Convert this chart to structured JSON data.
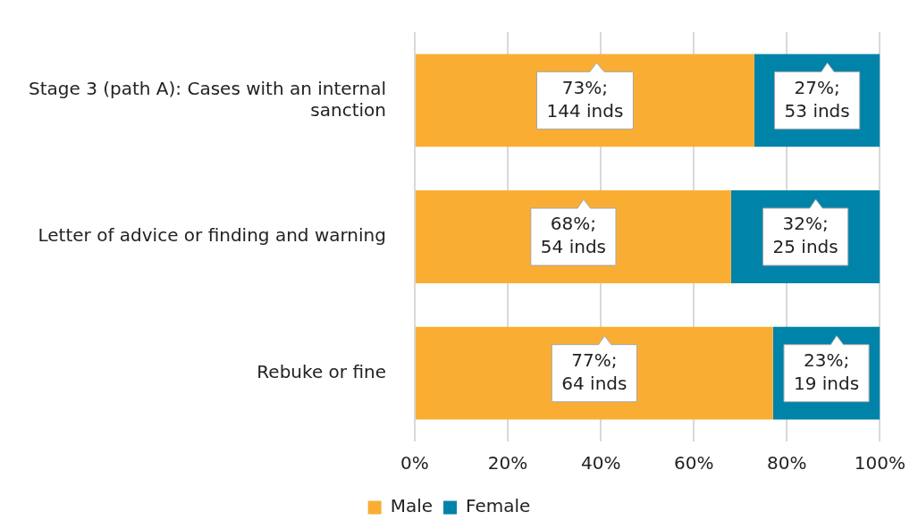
{
  "chart_data": {
    "type": "bar",
    "orientation": "horizontal",
    "stacked": true,
    "categories": [
      "Stage 3 (path A): Cases with an internal sanction",
      "Letter of advice or finding and warning",
      "Rebuke or fine"
    ],
    "series": [
      {
        "name": "Male",
        "color": "#f9ae33",
        "values": [
          73,
          68,
          77
        ],
        "value_labels": [
          "73%;\n144 inds",
          "68%;\n54 inds",
          "77%;\n64 inds"
        ]
      },
      {
        "name": "Female",
        "color": "#0083a9",
        "values": [
          27,
          32,
          23
        ],
        "value_labels": [
          "27%;\n53 inds",
          "32%;\n25 inds",
          "23%;\n19 inds"
        ]
      }
    ],
    "xlim": [
      0,
      100
    ],
    "xticks": [
      {
        "value": 0,
        "label": "0%"
      },
      {
        "value": 20,
        "label": "20%"
      },
      {
        "value": 40,
        "label": "40%"
      },
      {
        "value": 60,
        "label": "60%"
      },
      {
        "value": 80,
        "label": "80%"
      },
      {
        "value": 100,
        "label": "100%"
      }
    ],
    "grid": "x",
    "legend": "bottom"
  }
}
